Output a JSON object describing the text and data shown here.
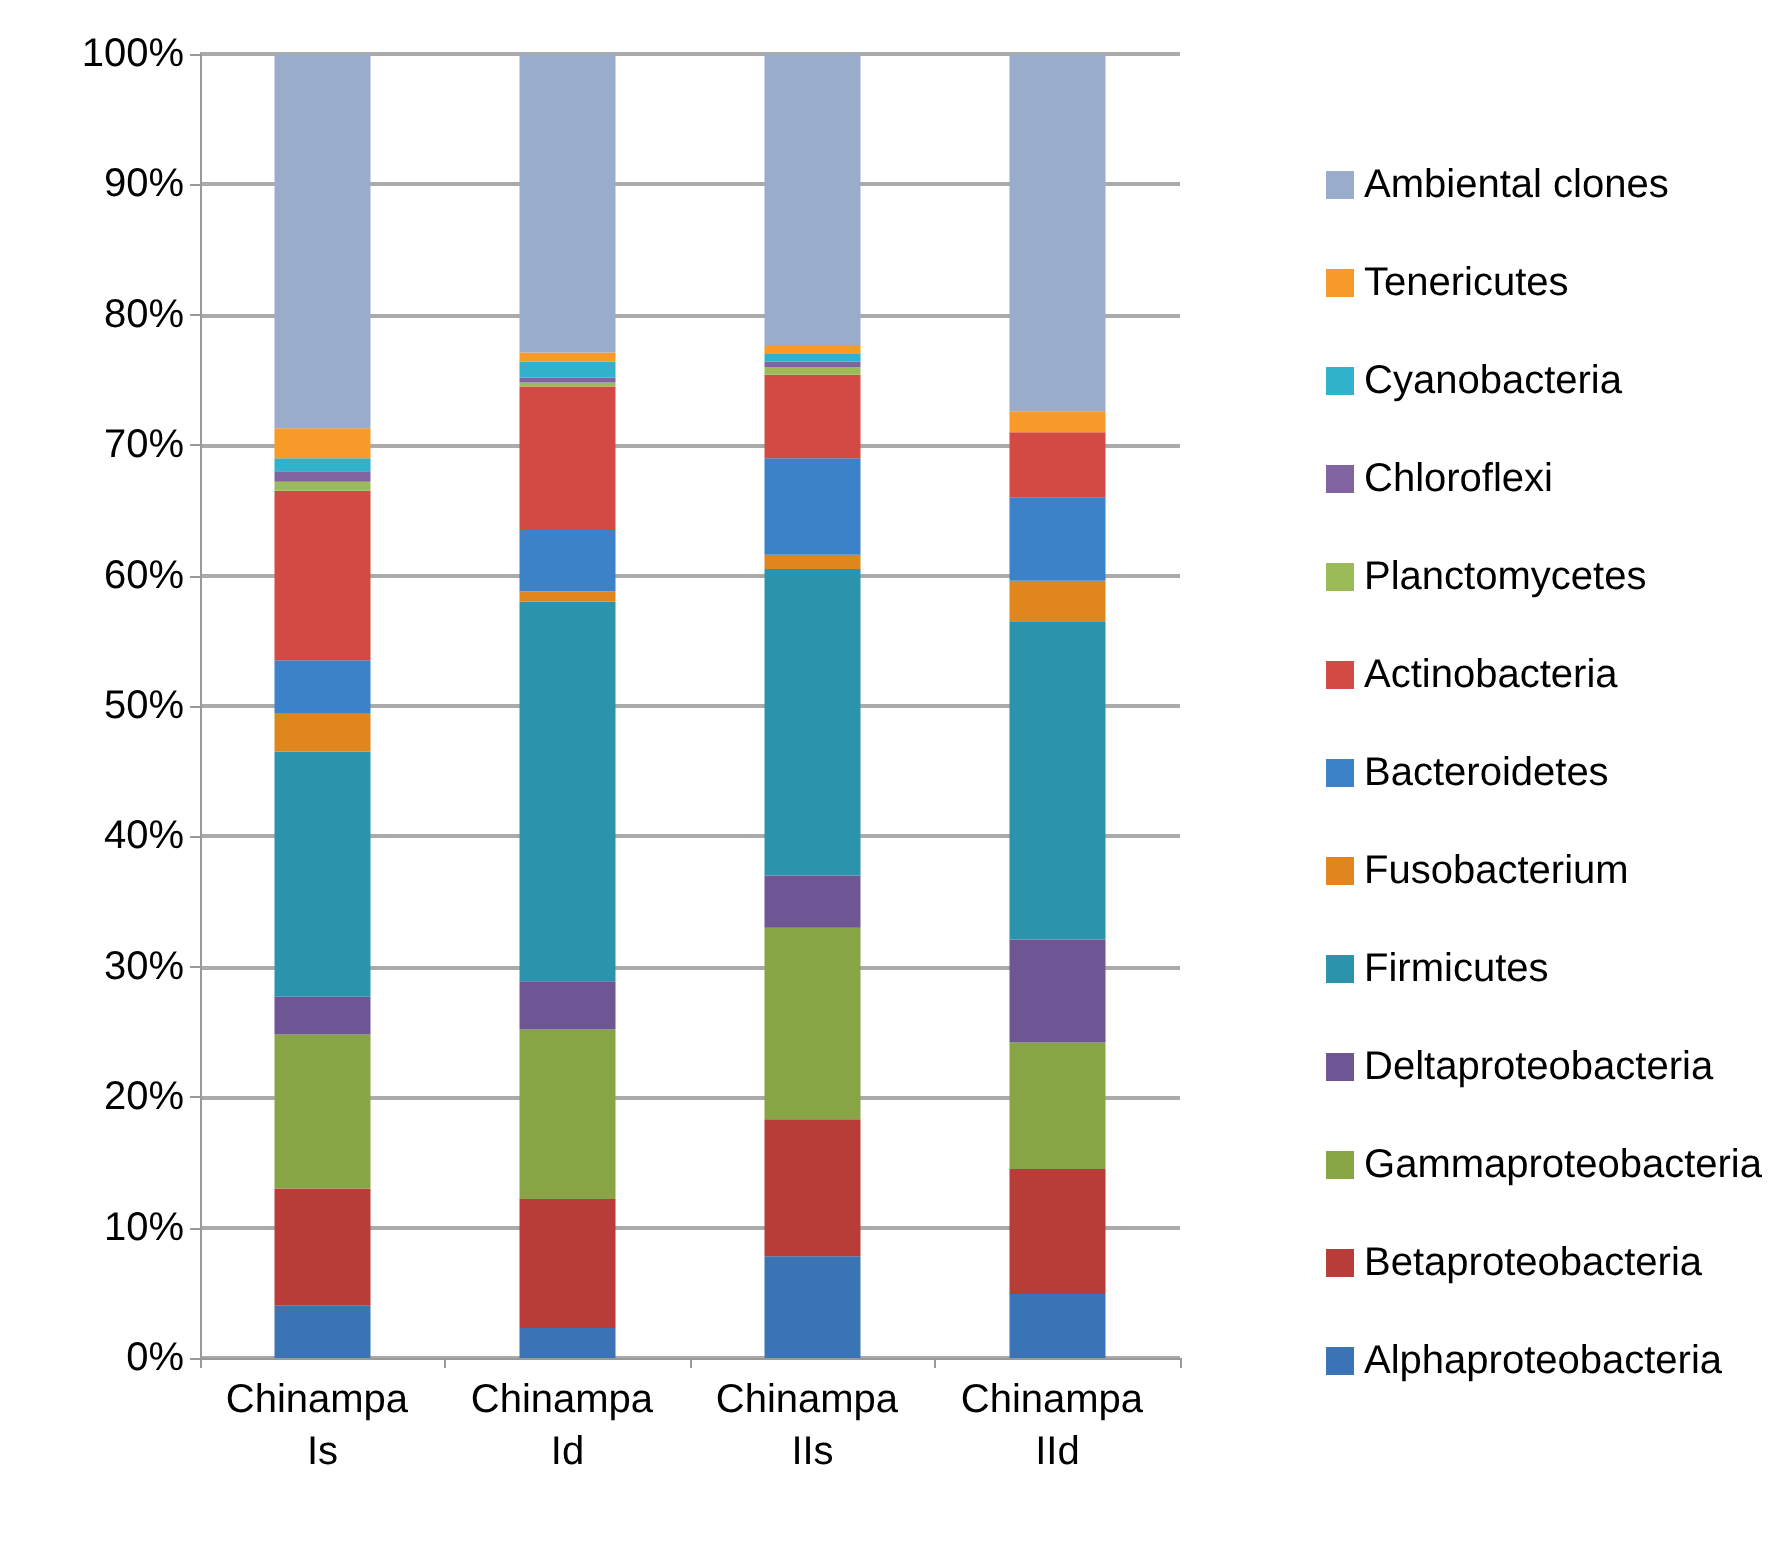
{
  "chart_data": {
    "type": "bar",
    "stacked": true,
    "categories": [
      "Chinampa Is",
      "Chinampa Id",
      "Chinampa IIs",
      "Chinampa IId"
    ],
    "series": [
      {
        "name": "Alphaproteobacteria",
        "color": "#3a74b5",
        "values": [
          4,
          2.3,
          7.8,
          4.9
        ]
      },
      {
        "name": "Betaproteobacteria",
        "color": "#b83c38",
        "values": [
          9,
          9.9,
          10.5,
          9.6
        ]
      },
      {
        "name": "Gammaproteobacteria",
        "color": "#87a545",
        "values": [
          11.8,
          13,
          14.7,
          9.7
        ]
      },
      {
        "name": "Deltaproteobacteria",
        "color": "#6e5594",
        "values": [
          2.9,
          3.7,
          4,
          7.9
        ]
      },
      {
        "name": "Firmicutes",
        "color": "#2b93ab",
        "values": [
          18.8,
          29.1,
          23.5,
          24.4
        ]
      },
      {
        "name": "Fusobacterium",
        "color": "#e0861f",
        "values": [
          2.9,
          0.8,
          1.1,
          3.1
        ]
      },
      {
        "name": "Bacteroidetes",
        "color": "#3b82c9",
        "values": [
          4.1,
          4.7,
          7.4,
          6.4
        ]
      },
      {
        "name": "Actinobacteria",
        "color": "#d24a43",
        "values": [
          13,
          11,
          6.4,
          5
        ]
      },
      {
        "name": "Planctomycetes",
        "color": "#9bbb59",
        "values": [
          0.7,
          0.3,
          0.6,
          0
        ]
      },
      {
        "name": "Chloroflexi",
        "color": "#8064a2",
        "values": [
          0.8,
          0.4,
          0.4,
          0
        ]
      },
      {
        "name": "Cyanobacteria",
        "color": "#31b2cc",
        "values": [
          1,
          1.2,
          0.6,
          0
        ]
      },
      {
        "name": "Tenericutes",
        "color": "#f79a2a",
        "values": [
          2.3,
          0.7,
          0.6,
          1.6
        ]
      },
      {
        "name": "Ambiental clones",
        "color": "#9aaccb",
        "values": [
          28.7,
          22.9,
          22.4,
          27.4
        ]
      }
    ],
    "ylim": [
      0,
      100
    ],
    "yticks": [
      {
        "value": 0,
        "label": "0%"
      },
      {
        "value": 10,
        "label": "10%"
      },
      {
        "value": 20,
        "label": "20%"
      },
      {
        "value": 30,
        "label": "30%"
      },
      {
        "value": 40,
        "label": "40%"
      },
      {
        "value": 50,
        "label": "50%"
      },
      {
        "value": 60,
        "label": "60%"
      },
      {
        "value": 70,
        "label": "70%"
      },
      {
        "value": 80,
        "label": "80%"
      },
      {
        "value": 90,
        "label": "90%"
      },
      {
        "value": 100,
        "label": "100%"
      }
    ],
    "grid": "y",
    "legend": "right"
  }
}
